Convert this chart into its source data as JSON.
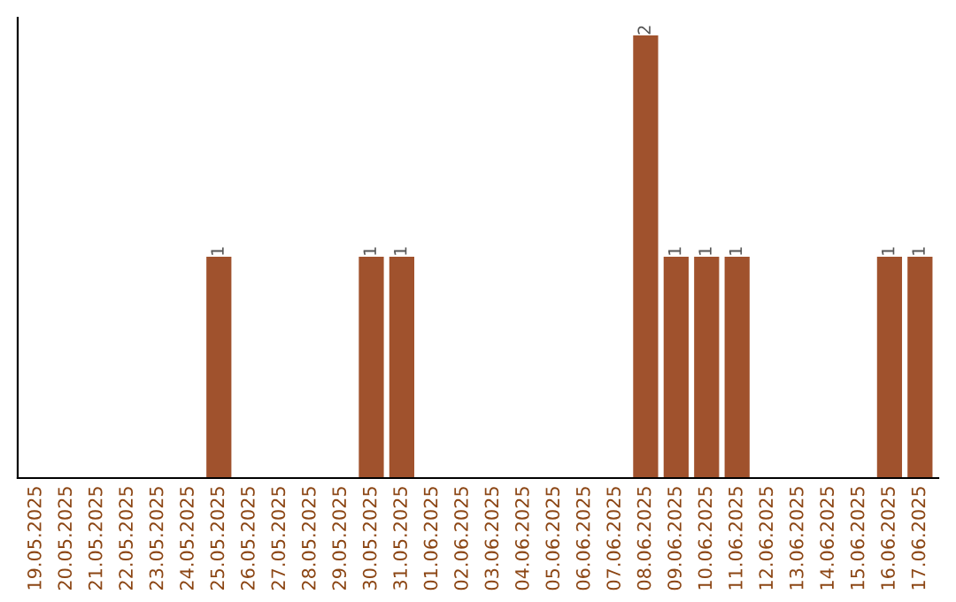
{
  "chart_data": {
    "type": "bar",
    "categories": [
      "19.05.2025",
      "20.05.2025",
      "21.05.2025",
      "22.05.2025",
      "23.05.2025",
      "24.05.2025",
      "25.05.2025",
      "26.05.2025",
      "27.05.2025",
      "28.05.2025",
      "29.05.2025",
      "30.05.2025",
      "31.05.2025",
      "01.06.2025",
      "02.06.2025",
      "03.06.2025",
      "04.06.2025",
      "05.06.2025",
      "06.06.2025",
      "07.06.2025",
      "08.06.2025",
      "09.06.2025",
      "10.06.2025",
      "11.06.2025",
      "12.06.2025",
      "13.06.2025",
      "14.06.2025",
      "15.06.2025",
      "16.06.2025",
      "17.06.2025"
    ],
    "values": [
      0,
      0,
      0,
      0,
      0,
      0,
      1,
      0,
      0,
      0,
      0,
      1,
      1,
      0,
      0,
      0,
      0,
      0,
      0,
      0,
      2,
      1,
      1,
      1,
      0,
      0,
      0,
      0,
      1,
      1
    ],
    "value_labels": [
      null,
      null,
      null,
      null,
      null,
      null,
      "1",
      null,
      null,
      null,
      null,
      "1",
      "1",
      null,
      null,
      null,
      null,
      null,
      null,
      null,
      "2",
      "1",
      "1",
      "1",
      null,
      null,
      null,
      null,
      "1",
      "1"
    ],
    "color": "#a0522d",
    "grid": false,
    "legend": false
  }
}
